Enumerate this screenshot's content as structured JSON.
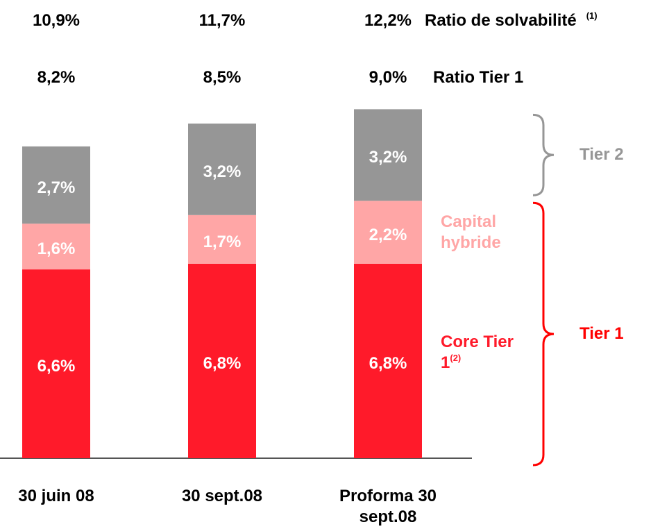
{
  "chart_data": {
    "type": "bar",
    "stacked": true,
    "categories": [
      "30 juin 08",
      "30 sept.08",
      "Proforma 30 sept.08"
    ],
    "series": [
      {
        "name": "Core Tier 1",
        "note": "(2)",
        "color": "#ff1a2a",
        "values": [
          6.6,
          6.8,
          6.8
        ],
        "value_labels": [
          "6,6%",
          "6,8%",
          "6,8%"
        ]
      },
      {
        "name": "Capital hybride",
        "color": "#ffa6a6",
        "values": [
          1.6,
          1.7,
          2.2
        ],
        "value_labels": [
          "1,6%",
          "1,7%",
          "2,2%"
        ]
      },
      {
        "name": "Tier 2",
        "color": "#969696",
        "values": [
          2.7,
          3.2,
          3.2
        ],
        "value_labels": [
          "2,7%",
          "3,2%",
          "3,2%"
        ]
      }
    ],
    "bracket": {
      "name": "Tier 1",
      "color": "#ff0000"
    },
    "annotations": [
      {
        "label": "Ratio de solvabilité",
        "note": "(1)",
        "values": [
          10.9,
          11.7,
          12.2
        ],
        "value_labels": [
          "10,9%",
          "11,7%",
          "12,2%"
        ]
      },
      {
        "label": "Ratio Tier 1",
        "values": [
          8.2,
          8.5,
          9.0
        ],
        "value_labels": [
          "8,2%",
          "8,5%",
          "9,0%"
        ]
      }
    ],
    "ylim": [
      0,
      16
    ]
  }
}
